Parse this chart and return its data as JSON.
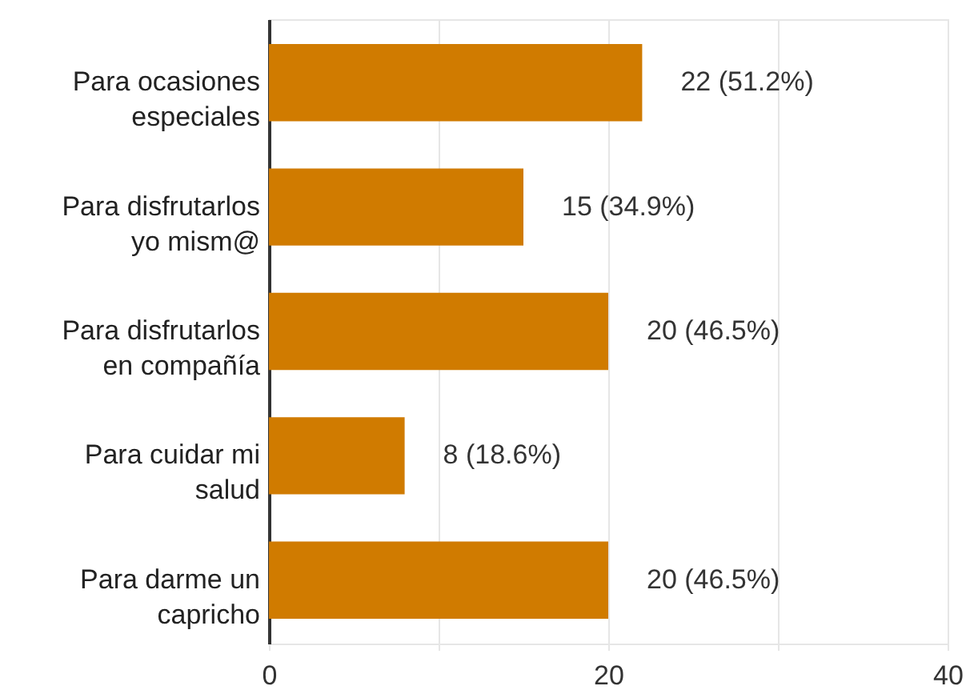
{
  "chart_data": {
    "type": "bar",
    "orientation": "horizontal",
    "categories": [
      "Para ocasiones especiales",
      "Para disfrutarlos yo mism@",
      "Para disfrutarlos en compañía",
      "Para cuidar mi salud",
      "Para darme un capricho"
    ],
    "values": [
      22,
      15,
      20,
      8,
      20
    ],
    "value_labels": [
      "22 (51.2%)",
      "15 (34.9%)",
      "20 (46.5%)",
      "8 (18.6%)",
      "20 (46.5%)"
    ],
    "color": "#d07b00",
    "xlim": [
      0,
      40
    ],
    "xticks": [
      0,
      {
        "value": 10,
        "label": null
      },
      20,
      {
        "value": 30,
        "label": null
      },
      40
    ],
    "grid": true
  }
}
